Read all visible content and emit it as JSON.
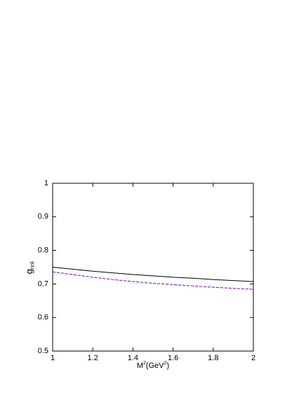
{
  "chart_data": {
    "type": "line",
    "xlabel": {
      "main": "M",
      "sup1": "2",
      "mid": "(GeV",
      "sup2": "2",
      "end": ")"
    },
    "ylabel": {
      "main": "g",
      "sub": "ηηk"
    },
    "x": [
      1,
      1.1,
      1.2,
      1.3,
      1.4,
      1.5,
      1.6,
      1.7,
      1.8,
      1.9,
      2
    ],
    "series": [
      {
        "color": "#000000",
        "dash": "none",
        "values": [
          0.75,
          0.744,
          0.738,
          0.733,
          0.728,
          0.724,
          0.72,
          0.717,
          0.713,
          0.71,
          0.707
        ]
      },
      {
        "color": "#c000c0",
        "dash": "4 2",
        "values": [
          0.736,
          0.728,
          0.72,
          0.713,
          0.707,
          0.702,
          0.698,
          0.694,
          0.69,
          0.687,
          0.684
        ]
      },
      {
        "color": "#2020c0",
        "dash": "1 2",
        "values": [
          0.736,
          0.728,
          0.72,
          0.713,
          0.707,
          0.702,
          0.698,
          0.694,
          0.69,
          0.687,
          0.684
        ]
      }
    ],
    "xlim": [
      1,
      2
    ],
    "xticks": [
      1,
      1.2,
      1.4,
      1.6,
      1.8,
      2
    ],
    "ylim": [
      0.5,
      1
    ],
    "yticks": [
      0.5,
      0.6,
      0.7,
      0.8,
      0.9,
      1
    ]
  }
}
